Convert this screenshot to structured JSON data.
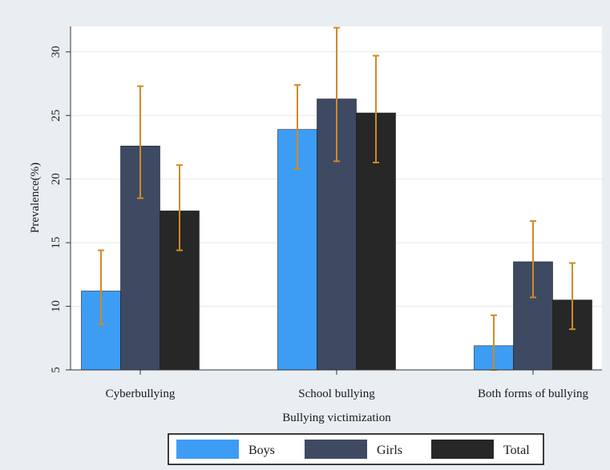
{
  "chart_data": {
    "type": "bar",
    "title": "",
    "xlabel": "Bullying victimization",
    "ylabel": "Prevalence(%)",
    "categories": [
      "Cyberbullying",
      "School bullying",
      "Both forms of bullying"
    ],
    "series": [
      {
        "name": "Boys",
        "color": "#3d9df5",
        "values": [
          11.2,
          23.9,
          6.9
        ],
        "error_low": [
          8.6,
          20.8,
          5.0
        ],
        "error_high": [
          14.4,
          27.4,
          9.3
        ]
      },
      {
        "name": "Girls",
        "color": "#3d4a62",
        "values": [
          22.6,
          26.3,
          13.5
        ],
        "error_low": [
          18.5,
          21.4,
          10.7
        ],
        "error_high": [
          27.3,
          31.9,
          16.7
        ]
      },
      {
        "name": "Total",
        "color": "#272727",
        "values": [
          17.5,
          25.2,
          10.5
        ],
        "error_low": [
          14.4,
          21.3,
          8.2
        ],
        "error_high": [
          21.1,
          29.7,
          13.4
        ]
      }
    ],
    "error_bar_color": "#d08a25",
    "ylim": [
      5,
      32
    ],
    "yticks": [
      "5",
      "10",
      "15",
      "20",
      "25",
      "30"
    ],
    "grid": true,
    "legend_position": "bottom"
  }
}
